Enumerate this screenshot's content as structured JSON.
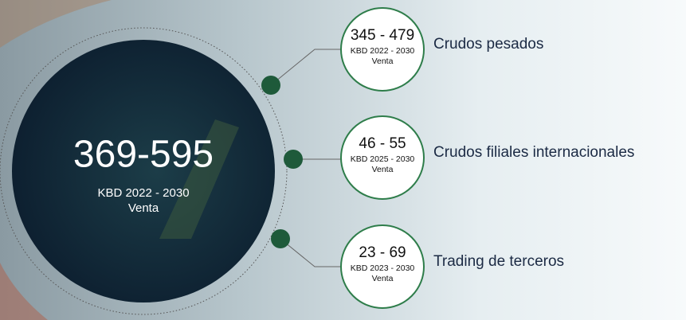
{
  "main": {
    "value": "369-595",
    "unit": "KBD 2022 - 2030",
    "label": "Venta"
  },
  "items": [
    {
      "value": "345 - 479",
      "unit": "KBD 2022 - 2030",
      "label": "Venta",
      "name": "Crudos pesados"
    },
    {
      "value": "46 - 55",
      "unit": "KBD 2025 - 2030",
      "label": "Venta",
      "name": "Crudos filiales internacionales"
    },
    {
      "value": "23 - 69",
      "unit": "KBD 2023 - 2030",
      "label": "Venta",
      "name": "Trading de terceros"
    }
  ]
}
